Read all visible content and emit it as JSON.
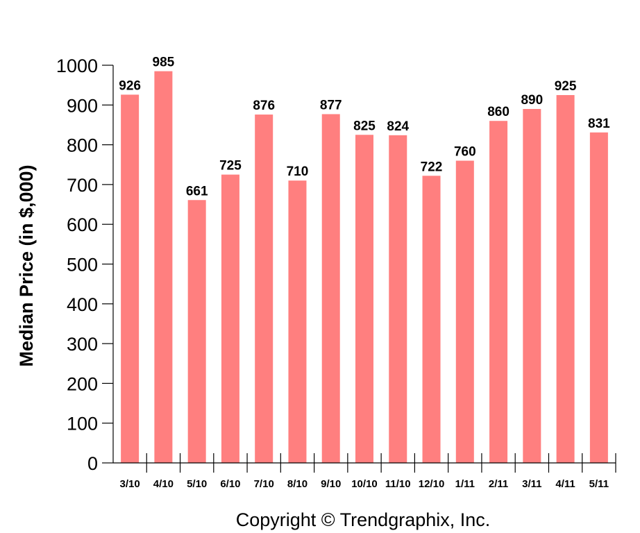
{
  "chart_data": {
    "type": "bar",
    "categories": [
      "3/10",
      "4/10",
      "5/10",
      "6/10",
      "7/10",
      "8/10",
      "9/10",
      "10/10",
      "11/10",
      "12/10",
      "1/11",
      "2/11",
      "3/11",
      "4/11",
      "5/11"
    ],
    "values": [
      926,
      985,
      661,
      725,
      876,
      710,
      877,
      825,
      824,
      722,
      760,
      860,
      890,
      925,
      831
    ],
    "title": "",
    "xlabel": "",
    "ylabel": "Median Price (in $,000)",
    "ylim": [
      0,
      1000
    ],
    "yticks": [
      0,
      100,
      200,
      300,
      400,
      500,
      600,
      700,
      800,
      900,
      1000
    ],
    "grid": false,
    "bar_color": "#ff7f7f"
  },
  "footer": {
    "copyright": "Copyright © Trendgraphix, Inc."
  }
}
